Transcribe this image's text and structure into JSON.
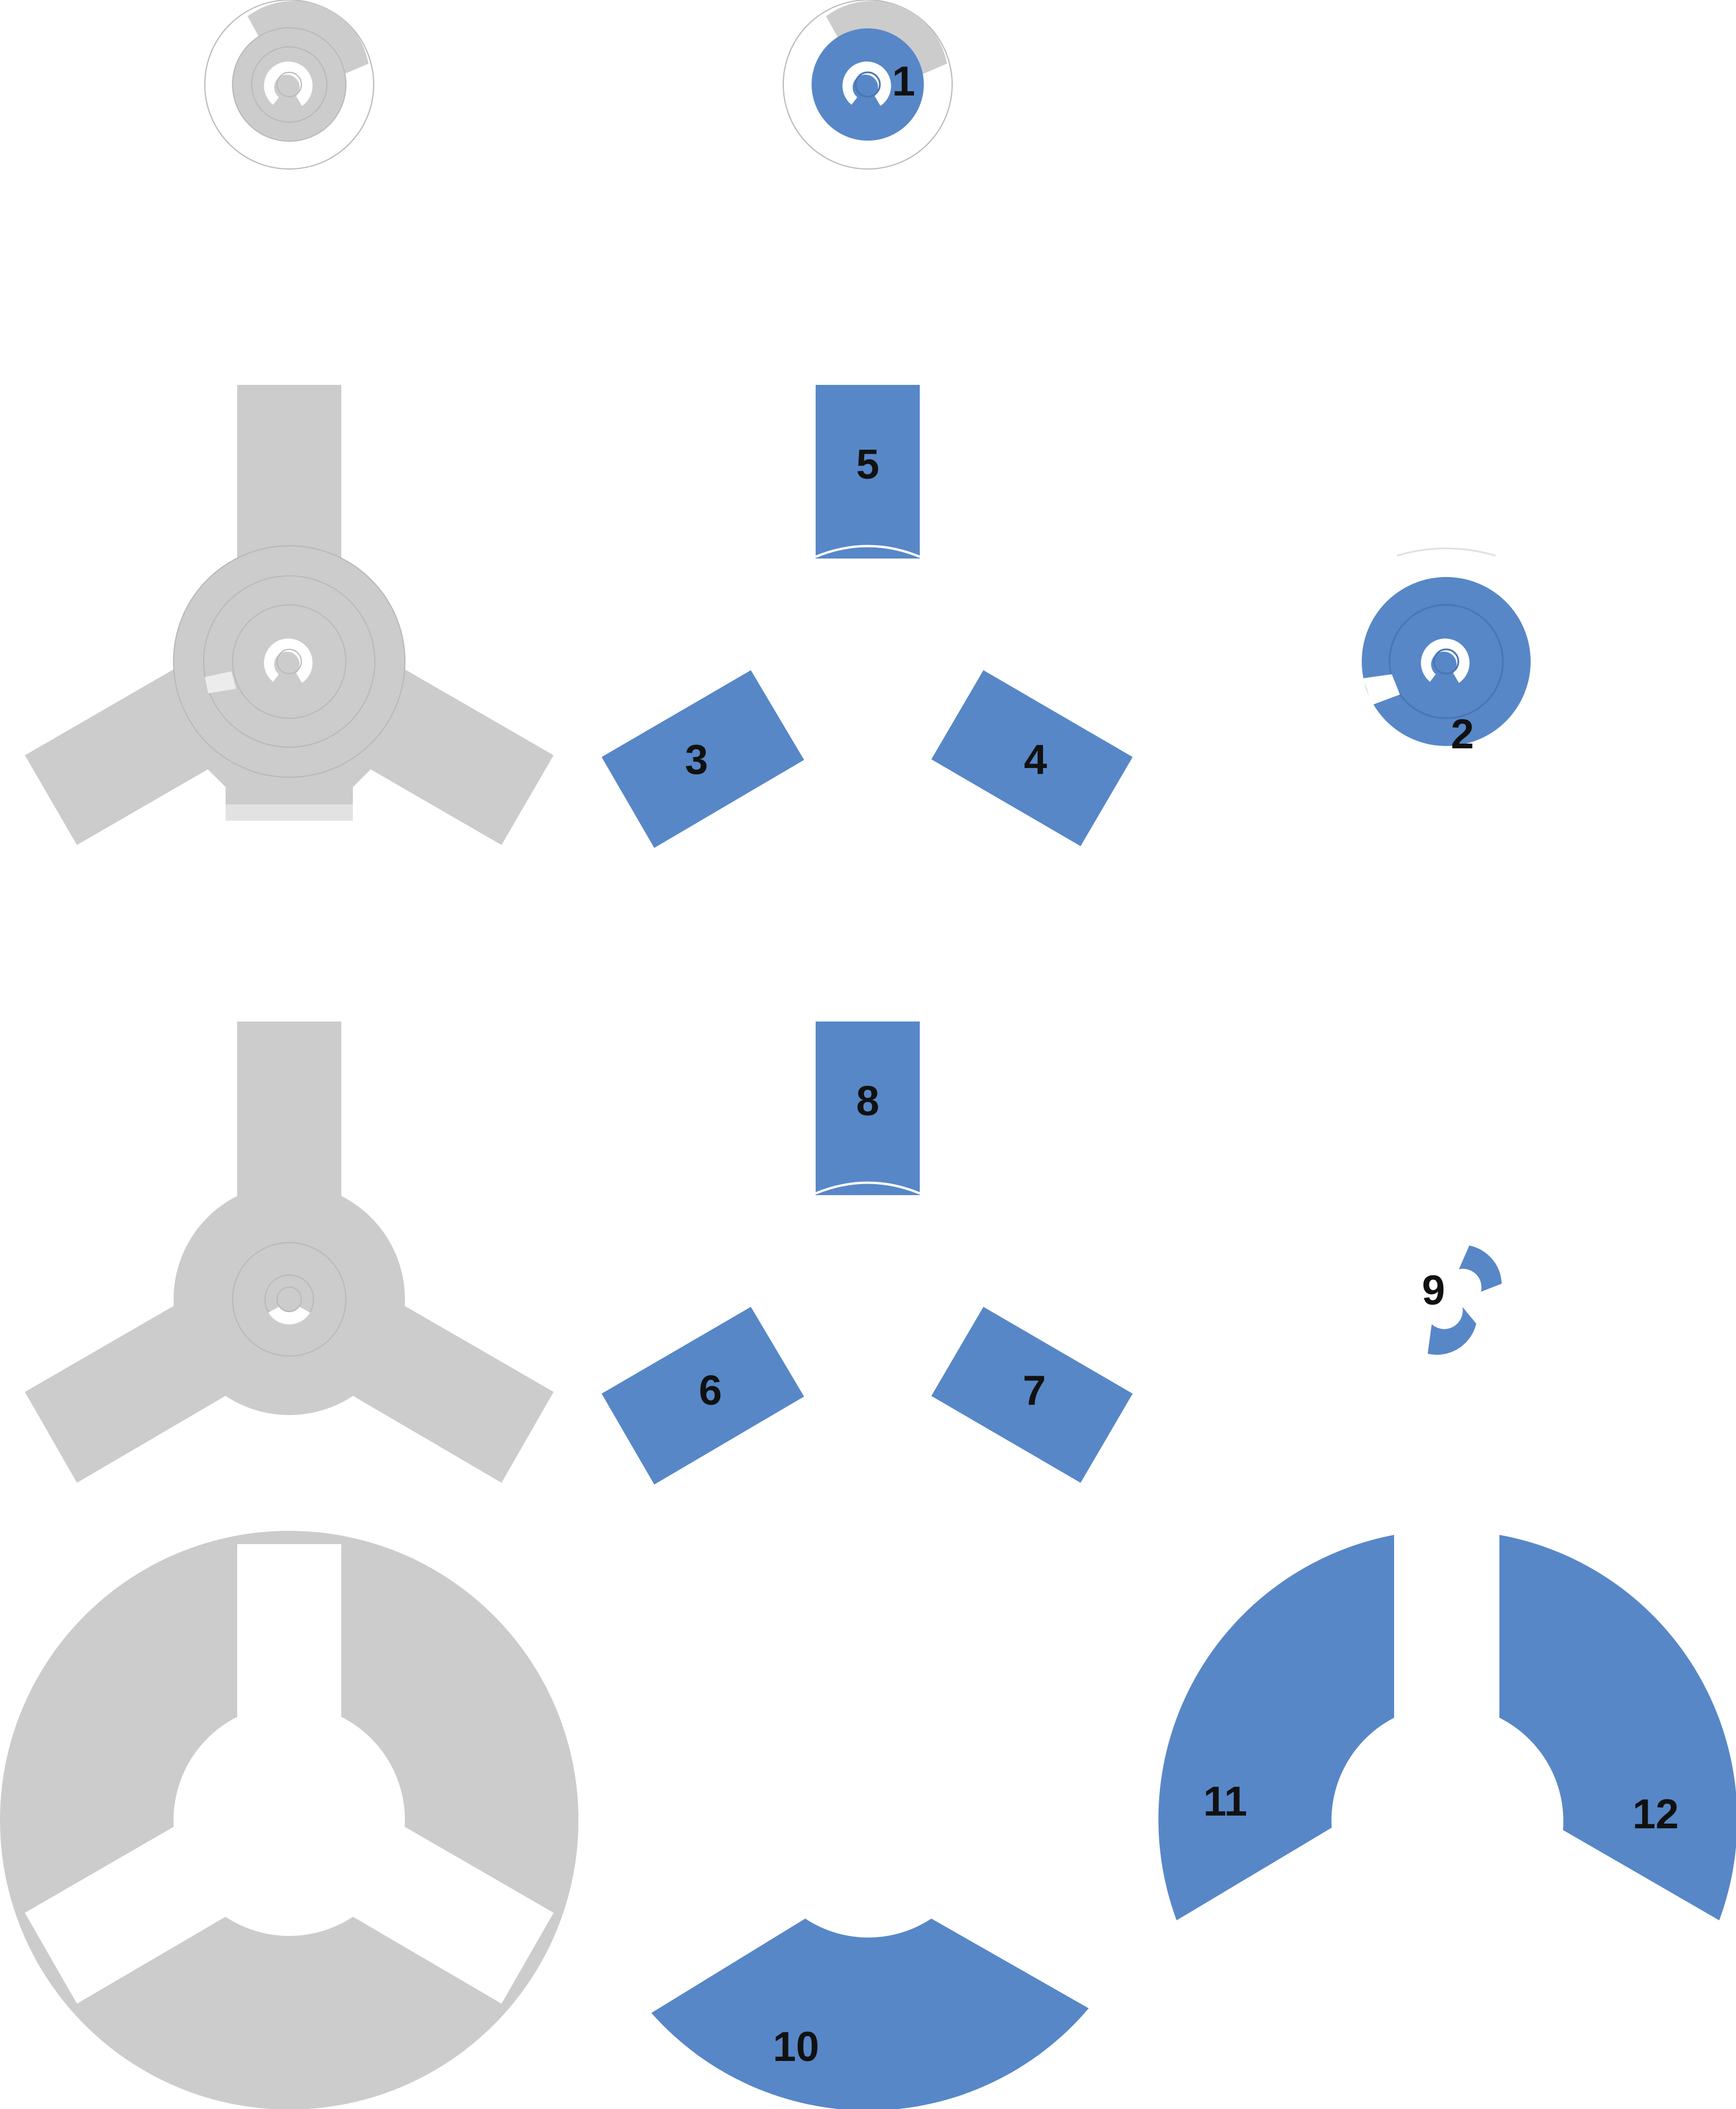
{
  "colors": {
    "assembled": "#cccccc",
    "assembled_line": "#b9b9b9",
    "part": "#5787c7",
    "part_line": "#4a77b3",
    "label": "#111111",
    "background": "#ffffff"
  },
  "part_labels": {
    "p1": "1",
    "p2": "2",
    "p3": "3",
    "p4": "4",
    "p5": "5",
    "p6": "6",
    "p7": "7",
    "p8": "8",
    "p9": "9",
    "p10": "10",
    "p11": "11",
    "p12": "12"
  }
}
